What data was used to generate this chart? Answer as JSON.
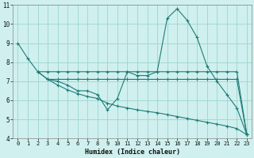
{
  "xlabel": "Humidex (Indice chaleur)",
  "background_color": "#cff0ee",
  "grid_color": "#9dd4d0",
  "line_color": "#1e7b78",
  "xlim": [
    -0.5,
    23.5
  ],
  "ylim": [
    4,
    11
  ],
  "xticks": [
    0,
    1,
    2,
    3,
    4,
    5,
    6,
    7,
    8,
    9,
    10,
    11,
    12,
    13,
    14,
    15,
    16,
    17,
    18,
    19,
    20,
    21,
    22,
    23
  ],
  "yticks": [
    4,
    5,
    6,
    7,
    8,
    9,
    10,
    11
  ],
  "lines": [
    {
      "x": [
        0,
        1,
        2,
        3,
        4,
        5,
        6,
        7,
        8,
        9,
        10,
        11,
        12,
        13,
        14,
        15,
        16,
        17,
        18,
        19,
        20,
        21,
        22,
        23
      ],
      "y": [
        9.0,
        8.2,
        7.5,
        7.1,
        7.0,
        6.8,
        6.5,
        6.5,
        6.3,
        5.5,
        6.1,
        7.5,
        7.3,
        7.3,
        7.5,
        10.3,
        10.8,
        10.2,
        9.3,
        7.8,
        7.0,
        6.3,
        5.6,
        4.2
      ],
      "linestyle": "-"
    },
    {
      "x": [
        2,
        3,
        4,
        5,
        6,
        7,
        8,
        9,
        10,
        11,
        12,
        13,
        14,
        15,
        16,
        17,
        18,
        19,
        20,
        21,
        22,
        23
      ],
      "y": [
        7.5,
        7.5,
        7.5,
        7.5,
        7.5,
        7.5,
        7.5,
        7.5,
        7.5,
        7.5,
        7.5,
        7.5,
        7.5,
        7.5,
        7.5,
        7.5,
        7.5,
        7.5,
        7.5,
        7.5,
        7.5,
        4.2
      ],
      "linestyle": "-"
    },
    {
      "x": [
        3,
        4,
        5,
        6,
        7,
        8,
        9,
        10,
        11,
        12,
        13,
        14,
        15,
        16,
        17,
        18,
        19,
        20,
        21,
        22,
        23
      ],
      "y": [
        7.1,
        7.1,
        7.1,
        7.1,
        7.1,
        7.1,
        7.1,
        7.1,
        7.1,
        7.1,
        7.1,
        7.1,
        7.1,
        7.1,
        7.1,
        7.1,
        7.1,
        7.1,
        7.1,
        7.1,
        4.2
      ],
      "linestyle": "-"
    },
    {
      "x": [
        2,
        3,
        4,
        5,
        6,
        7,
        8,
        9,
        10,
        11,
        12,
        13,
        14,
        15,
        16,
        17,
        18,
        19,
        20,
        21,
        22,
        23
      ],
      "y": [
        7.5,
        7.1,
        6.8,
        6.55,
        6.35,
        6.2,
        6.1,
        5.85,
        5.7,
        5.6,
        5.5,
        5.42,
        5.35,
        5.25,
        5.15,
        5.05,
        4.95,
        4.85,
        4.75,
        4.65,
        4.52,
        4.2
      ],
      "linestyle": "-"
    }
  ]
}
